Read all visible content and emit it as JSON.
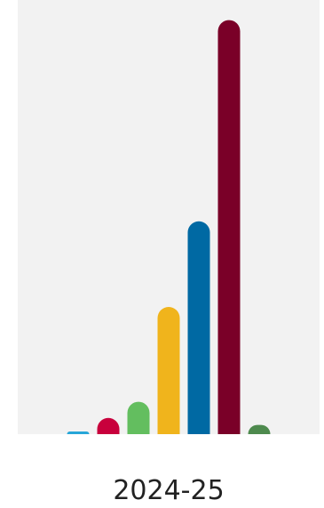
{
  "chart_data": {
    "type": "bar",
    "categories": [
      "2024-25"
    ],
    "series": [
      {
        "color": "#27a6d8",
        "values": [
          1
        ]
      },
      {
        "color": "#c8003c",
        "values": [
          7
        ]
      },
      {
        "color": "#63be5f",
        "values": [
          14
        ]
      },
      {
        "color": "#f0b41c",
        "values": [
          55
        ]
      },
      {
        "color": "#0069a3",
        "values": [
          92
        ]
      },
      {
        "color": "#7a0028",
        "values": [
          179
        ]
      },
      {
        "color": "#4e8a4e",
        "values": [
          4
        ]
      }
    ],
    "ylim": [
      0,
      180
    ],
    "grid": false,
    "legend": "none",
    "plot_background": "#f2f2f2"
  }
}
